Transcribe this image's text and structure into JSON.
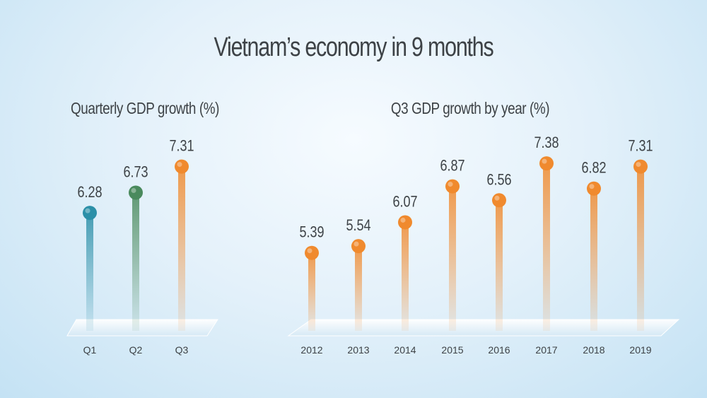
{
  "title": "Vietnam’s economy in 9 months",
  "colors": {
    "teal": "#2b8fa8",
    "green": "#4a8a5d",
    "orange": "#f08a2e"
  },
  "chart_data": [
    {
      "type": "lollipop",
      "title": "Quarterly GDP growth (%)",
      "categories": [
        "Q1",
        "Q2",
        "Q3"
      ],
      "values": [
        6.28,
        6.73,
        7.31
      ],
      "value_labels": [
        "6.28",
        "6.73",
        "7.31"
      ],
      "colors": [
        "#2b8fa8",
        "#4a8a5d",
        "#f08a2e"
      ],
      "xlabel": "",
      "ylabel": ""
    },
    {
      "type": "lollipop",
      "title": "Q3 GDP growth by year (%)",
      "categories": [
        "2012",
        "2013",
        "2014",
        "2015",
        "2016",
        "2017",
        "2018",
        "2019"
      ],
      "values": [
        5.39,
        5.54,
        6.07,
        6.87,
        6.56,
        7.38,
        6.82,
        7.31
      ],
      "value_labels": [
        "5.39",
        "5.54",
        "6.07",
        "6.87",
        "6.56",
        "7.38",
        "6.82",
        "7.31"
      ],
      "colors": [
        "#f08a2e",
        "#f08a2e",
        "#f08a2e",
        "#f08a2e",
        "#f08a2e",
        "#f08a2e",
        "#f08a2e",
        "#f08a2e"
      ],
      "xlabel": "",
      "ylabel": ""
    }
  ]
}
